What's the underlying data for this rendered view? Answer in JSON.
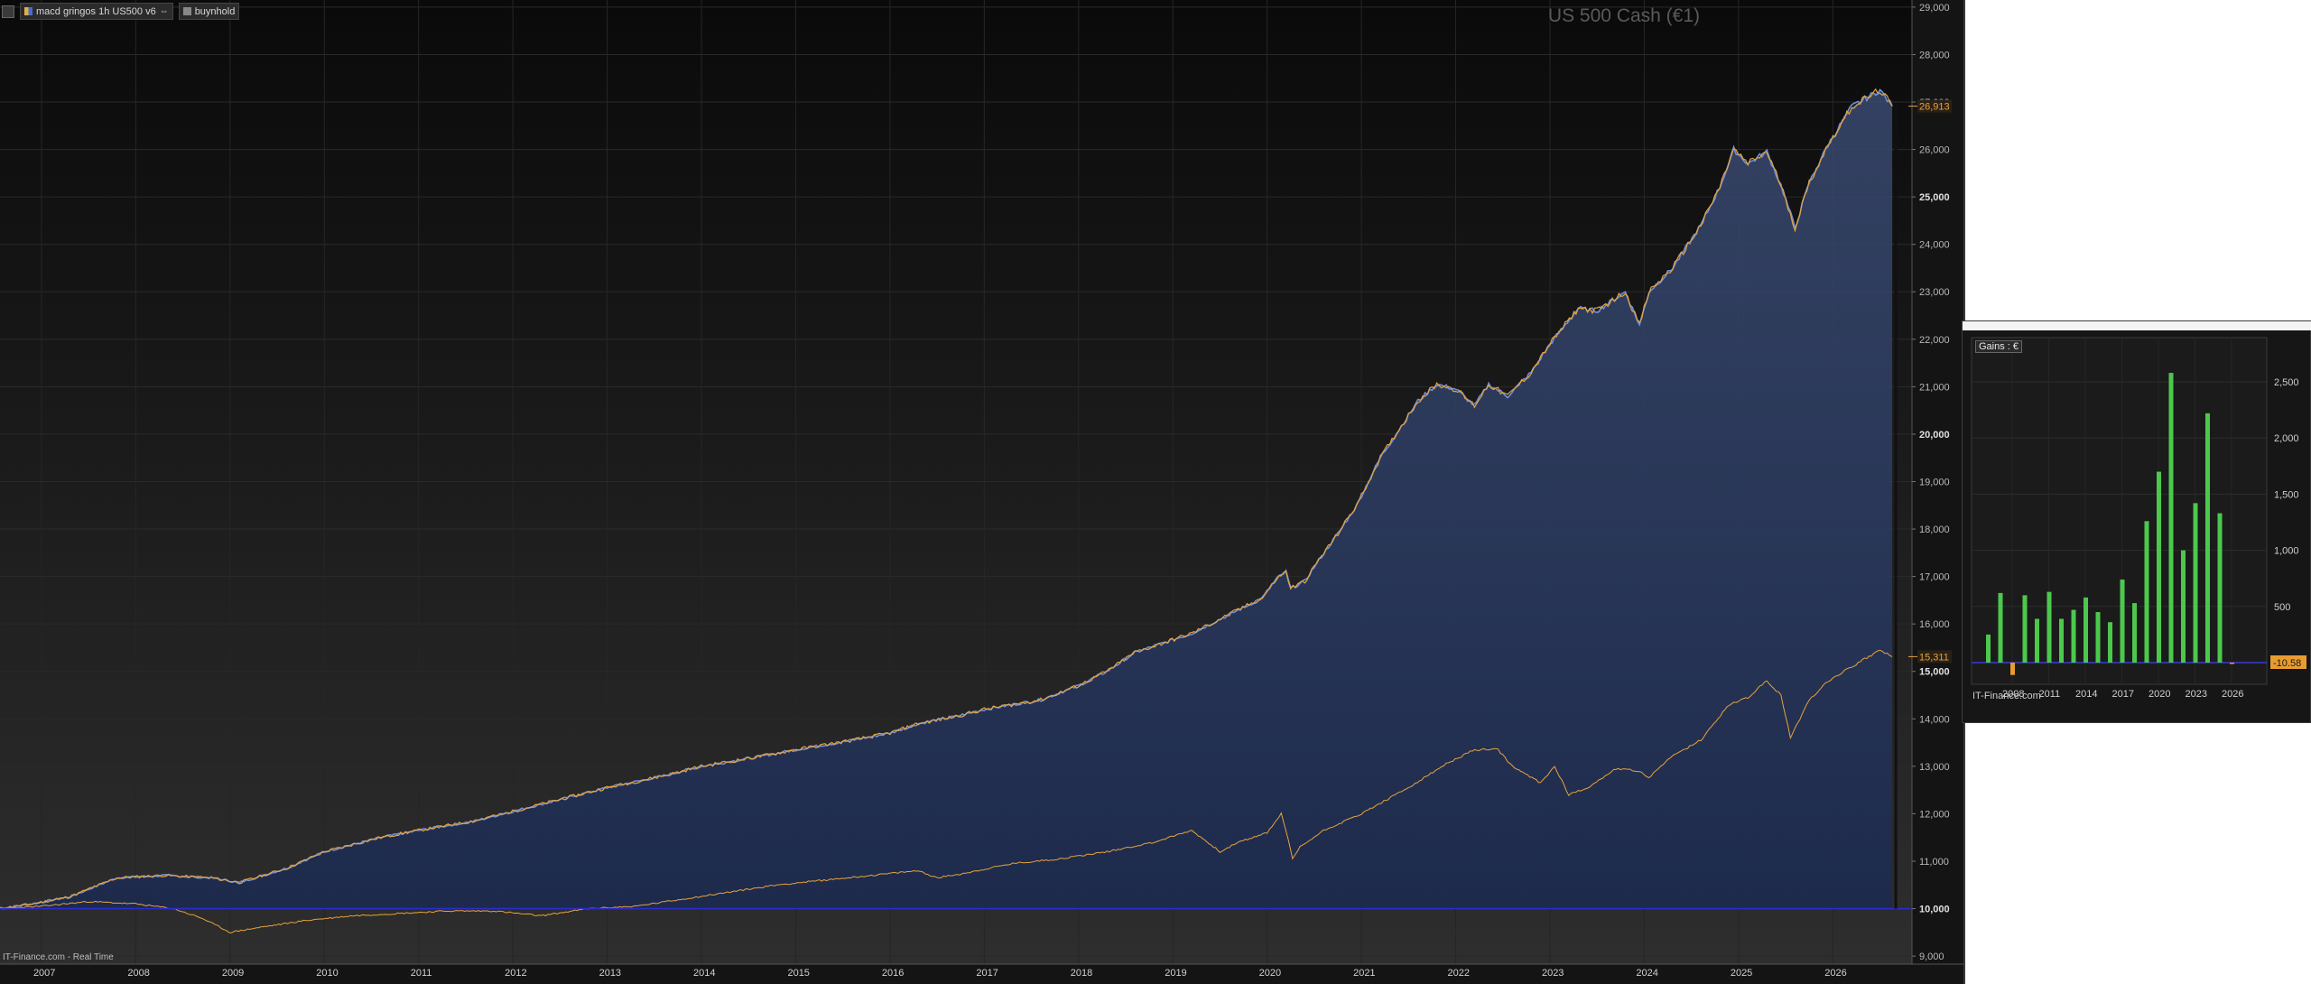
{
  "legend": {
    "items": [
      {
        "label": "macd gringos 1h US500 v6",
        "color": "#e0b040"
      },
      {
        "label": "buynhold",
        "color": "#888888"
      }
    ]
  },
  "instrument_title": "US 500 Cash (€1)",
  "watermark": "IT-Finance.com - Real Time",
  "colors": {
    "background": "#141414",
    "strategy": "#e7a33e",
    "strategy_fill": "#1c2a4d",
    "baseline": "#2c2cd0",
    "gain_positive": "#4cc84c",
    "gain_negative": "#e89c30"
  },
  "chart_data": [
    {
      "type": "line",
      "title": "US 500 Cash (€1)",
      "x": [
        "2007",
        "2008",
        "2009",
        "2010",
        "2011",
        "2012",
        "2013",
        "2014",
        "2015",
        "2016",
        "2017",
        "2018",
        "2019",
        "2020",
        "2021",
        "2022",
        "2023",
        "2024",
        "2025",
        "2026"
      ],
      "yticks": [
        "9,000",
        "10,000",
        "11,000",
        "12,000",
        "13,000",
        "14,000",
        "15,000",
        "16,000",
        "17,000",
        "18,000",
        "19,000",
        "20,000",
        "21,000",
        "22,000",
        "23,000",
        "24,000",
        "25,000",
        "26,000",
        "27,000",
        "28,000",
        "29,000"
      ],
      "ylim": [
        8450,
        29150
      ],
      "series": [
        {
          "name": "macd gringos 1h US500 v6",
          "points": [
            [
              2006.55,
              10000
            ],
            [
              2006.9,
              10100
            ],
            [
              2007.3,
              10250
            ],
            [
              2007.8,
              10650
            ],
            [
              2008.3,
              10700
            ],
            [
              2008.8,
              10650
            ],
            [
              2009.1,
              10550
            ],
            [
              2009.6,
              10850
            ],
            [
              2010.0,
              11200
            ],
            [
              2010.6,
              11500
            ],
            [
              2011.0,
              11650
            ],
            [
              2011.6,
              11850
            ],
            [
              2012.0,
              12050
            ],
            [
              2012.6,
              12350
            ],
            [
              2013.0,
              12550
            ],
            [
              2013.6,
              12800
            ],
            [
              2014.0,
              13000
            ],
            [
              2014.6,
              13200
            ],
            [
              2015.0,
              13350
            ],
            [
              2015.6,
              13550
            ],
            [
              2016.0,
              13700
            ],
            [
              2016.3,
              13900
            ],
            [
              2016.7,
              14050
            ],
            [
              2017.0,
              14200
            ],
            [
              2017.6,
              14400
            ],
            [
              2018.0,
              14700
            ],
            [
              2018.3,
              15000
            ],
            [
              2018.6,
              15400
            ],
            [
              2018.9,
              15600
            ],
            [
              2019.2,
              15800
            ],
            [
              2019.6,
              16200
            ],
            [
              2019.95,
              16550
            ],
            [
              2020.1,
              16950
            ],
            [
              2020.2,
              17100
            ],
            [
              2020.25,
              16750
            ],
            [
              2020.4,
              16900
            ],
            [
              2020.55,
              17350
            ],
            [
              2020.75,
              17900
            ],
            [
              2020.95,
              18500
            ],
            [
              2021.2,
              19500
            ],
            [
              2021.4,
              20100
            ],
            [
              2021.6,
              20700
            ],
            [
              2021.8,
              21050
            ],
            [
              2022.0,
              20950
            ],
            [
              2022.2,
              20600
            ],
            [
              2022.35,
              21050
            ],
            [
              2022.55,
              20800
            ],
            [
              2022.8,
              21300
            ],
            [
              2023.0,
              21900
            ],
            [
              2023.3,
              22650
            ],
            [
              2023.5,
              22600
            ],
            [
              2023.8,
              23000
            ],
            [
              2023.95,
              22300
            ],
            [
              2024.05,
              23000
            ],
            [
              2024.3,
              23500
            ],
            [
              2024.6,
              24400
            ],
            [
              2024.8,
              25200
            ],
            [
              2024.95,
              26000
            ],
            [
              2025.1,
              25700
            ],
            [
              2025.3,
              25950
            ],
            [
              2025.45,
              25250
            ],
            [
              2025.6,
              24350
            ],
            [
              2025.75,
              25300
            ],
            [
              2025.95,
              26100
            ],
            [
              2026.2,
              26900
            ],
            [
              2026.5,
              27250
            ],
            [
              2026.63,
              26913
            ]
          ]
        },
        {
          "name": "buynhold",
          "points": [
            [
              2006.55,
              10000
            ],
            [
              2007.0,
              10050
            ],
            [
              2007.5,
              10150
            ],
            [
              2008.0,
              10100
            ],
            [
              2008.4,
              10000
            ],
            [
              2008.7,
              9800
            ],
            [
              2009.0,
              9500
            ],
            [
              2009.3,
              9600
            ],
            [
              2009.8,
              9750
            ],
            [
              2010.3,
              9850
            ],
            [
              2010.8,
              9900
            ],
            [
              2011.3,
              9950
            ],
            [
              2011.8,
              9950
            ],
            [
              2012.3,
              9850
            ],
            [
              2012.8,
              10000
            ],
            [
              2013.3,
              10050
            ],
            [
              2013.8,
              10200
            ],
            [
              2014.3,
              10350
            ],
            [
              2014.8,
              10500
            ],
            [
              2015.3,
              10600
            ],
            [
              2015.8,
              10700
            ],
            [
              2016.3,
              10800
            ],
            [
              2016.5,
              10650
            ],
            [
              2016.8,
              10750
            ],
            [
              2017.3,
              10950
            ],
            [
              2017.8,
              11050
            ],
            [
              2018.3,
              11200
            ],
            [
              2018.8,
              11400
            ],
            [
              2019.2,
              11650
            ],
            [
              2019.5,
              11200
            ],
            [
              2019.7,
              11400
            ],
            [
              2020.0,
              11600
            ],
            [
              2020.15,
              12000
            ],
            [
              2020.2,
              11650
            ],
            [
              2020.27,
              11050
            ],
            [
              2020.35,
              11300
            ],
            [
              2020.6,
              11650
            ],
            [
              2021.0,
              12000
            ],
            [
              2021.5,
              12550
            ],
            [
              2021.9,
              13050
            ],
            [
              2022.2,
              13350
            ],
            [
              2022.45,
              13350
            ],
            [
              2022.6,
              13000
            ],
            [
              2022.9,
              12650
            ],
            [
              2023.05,
              13000
            ],
            [
              2023.2,
              12400
            ],
            [
              2023.4,
              12550
            ],
            [
              2023.7,
              12950
            ],
            [
              2023.95,
              12900
            ],
            [
              2024.05,
              12750
            ],
            [
              2024.25,
              13150
            ],
            [
              2024.6,
              13550
            ],
            [
              2024.9,
              14300
            ],
            [
              2025.1,
              14450
            ],
            [
              2025.3,
              14800
            ],
            [
              2025.45,
              14500
            ],
            [
              2025.55,
              13600
            ],
            [
              2025.75,
              14400
            ],
            [
              2025.95,
              14800
            ],
            [
              2026.2,
              15100
            ],
            [
              2026.5,
              15450
            ],
            [
              2026.63,
              15311
            ]
          ]
        }
      ],
      "last_values": [
        {
          "series": "macd gringos 1h US500 v6",
          "label": "26,913",
          "value": 26913
        },
        {
          "series": "buynhold",
          "label": "15,311",
          "value": 15311
        }
      ],
      "reference_line": 10000,
      "grid": true
    },
    {
      "type": "bar",
      "title": "Gains : €",
      "xlabels": [
        "2008",
        "2011",
        "2014",
        "2017",
        "2020",
        "2023",
        "2026"
      ],
      "categories": [
        "2006",
        "2007",
        "2008",
        "2009",
        "2010",
        "2011",
        "2012",
        "2013",
        "2014",
        "2015",
        "2016",
        "2017",
        "2018",
        "2019",
        "2020",
        "2021",
        "2022",
        "2023",
        "2024",
        "2025",
        "2026"
      ],
      "values": [
        250,
        620,
        -110,
        600,
        390,
        630,
        390,
        470,
        580,
        450,
        360,
        740,
        530,
        1260,
        1700,
        2580,
        1000,
        1420,
        2220,
        1330,
        -10.58
      ],
      "yticks": [
        "500",
        "1,000",
        "1,500",
        "2,000",
        "2,500"
      ],
      "ylim": [
        -200,
        2800
      ],
      "last_value_label": "-10.58",
      "source": "IT-Finance.com",
      "grid": true
    }
  ]
}
